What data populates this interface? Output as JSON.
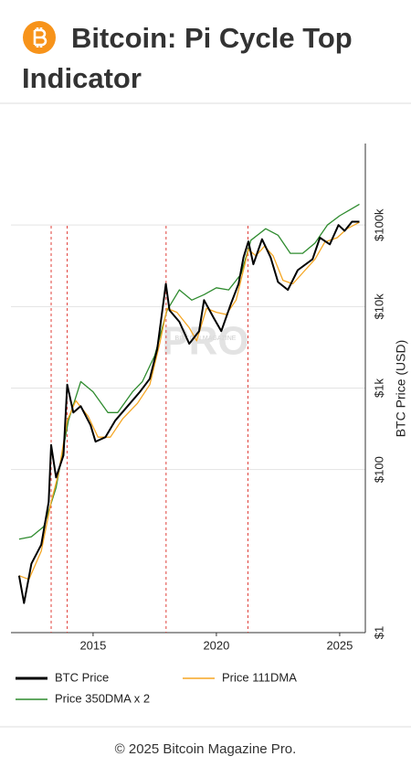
{
  "header": {
    "title": "Bitcoin: Pi Cycle Top Indicator"
  },
  "chart_data": {
    "type": "line",
    "log_y": true,
    "grid": true,
    "ylabel": "BTC Price (USD)",
    "watermark": {
      "top": "BITCOIN MAGAZINE",
      "main": "PRO"
    },
    "xlim": [
      2011.67,
      2026.04
    ],
    "xticks": [
      2015,
      2020,
      2025
    ],
    "ylim": [
      1,
      1000000
    ],
    "yticks": [
      {
        "value": 1,
        "label": "$1"
      },
      {
        "value": 100,
        "label": "$100"
      },
      {
        "value": 1000,
        "label": "$1k"
      },
      {
        "value": 10000,
        "label": "$10k"
      },
      {
        "value": 100000,
        "label": "$100k"
      }
    ],
    "crossovers": [
      2013.3,
      2013.95,
      2017.96,
      2021.28
    ],
    "crossover_color": "#e0403a",
    "series": [
      {
        "name": "BTC Price",
        "color": "#000000",
        "x": [
          2012.0,
          2012.2,
          2012.5,
          2012.9,
          2013.2,
          2013.3,
          2013.5,
          2013.8,
          2013.95,
          2014.2,
          2014.5,
          2014.9,
          2015.1,
          2015.5,
          2015.9,
          2016.4,
          2016.9,
          2017.3,
          2017.6,
          2017.95,
          2018.1,
          2018.5,
          2018.9,
          2019.3,
          2019.5,
          2019.9,
          2020.2,
          2020.6,
          2020.9,
          2021.1,
          2021.3,
          2021.5,
          2021.85,
          2022.2,
          2022.5,
          2022.9,
          2023.3,
          2023.9,
          2024.2,
          2024.6,
          2024.95,
          2025.2,
          2025.5,
          2025.8
        ],
        "values": [
          5,
          2.3,
          7,
          12,
          40,
          200,
          80,
          150,
          1100,
          500,
          600,
          350,
          220,
          250,
          400,
          600,
          900,
          1300,
          3000,
          19000,
          9000,
          6500,
          3500,
          5000,
          12000,
          7200,
          5000,
          11000,
          19000,
          40000,
          63000,
          33000,
          67000,
          40000,
          20000,
          16000,
          28000,
          38000,
          70000,
          58000,
          100000,
          85000,
          110000,
          110000
        ]
      },
      {
        "name": "Price 111DMA",
        "color": "#f5a623",
        "x": [
          2012.0,
          2012.4,
          2012.9,
          2013.3,
          2013.6,
          2013.95,
          2014.3,
          2014.8,
          2015.2,
          2015.7,
          2016.2,
          2016.8,
          2017.3,
          2017.7,
          2018.0,
          2018.4,
          2018.9,
          2019.2,
          2019.6,
          2020.0,
          2020.4,
          2020.8,
          2021.3,
          2021.6,
          2021.95,
          2022.3,
          2022.7,
          2023.1,
          2023.6,
          2024.0,
          2024.4,
          2024.9,
          2025.3,
          2025.8
        ],
        "values": [
          5,
          4.5,
          10,
          40,
          90,
          400,
          700,
          450,
          250,
          250,
          420,
          650,
          1100,
          3500,
          9500,
          8500,
          5500,
          3800,
          9500,
          8500,
          8000,
          12000,
          50000,
          42000,
          55000,
          42000,
          21000,
          19000,
          28000,
          38000,
          62000,
          70000,
          90000,
          108000
        ]
      },
      {
        "name": "Price 350DMA x 2",
        "color": "#2e8b2e",
        "x": [
          2012.0,
          2012.5,
          2013.0,
          2013.5,
          2014.0,
          2014.5,
          2015.0,
          2015.6,
          2016.0,
          2016.6,
          2017.0,
          2017.5,
          2018.0,
          2018.5,
          2019.0,
          2019.5,
          2020.0,
          2020.5,
          2021.0,
          2021.4,
          2022.0,
          2022.5,
          2023.0,
          2023.5,
          2024.0,
          2024.5,
          2025.0,
          2025.8
        ],
        "values": [
          14,
          15,
          20,
          60,
          400,
          1200,
          900,
          500,
          500,
          900,
          1200,
          2500,
          9000,
          16000,
          12000,
          14000,
          17000,
          16000,
          25000,
          65000,
          90000,
          75000,
          45000,
          45000,
          60000,
          100000,
          130000,
          180000
        ]
      }
    ]
  },
  "footer": "© 2025 Bitcoin Magazine Pro."
}
